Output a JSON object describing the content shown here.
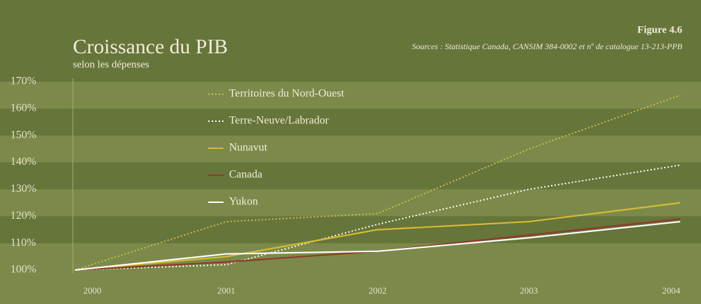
{
  "chart_data": {
    "type": "line",
    "title": "Croissance du PIB",
    "subtitle": "selon les dépenses",
    "figure_label": "Figure 4.6",
    "source": "Sources : Statistique Canada, CANSIM 384-0002 et nº de catalogue 13-213-PPB",
    "x": [
      2000,
      2001,
      2002,
      2003,
      2004
    ],
    "xlim": [
      2000,
      2004
    ],
    "xticks": [
      2000,
      2001,
      2002,
      2003,
      2004
    ],
    "ylim": [
      100,
      170
    ],
    "yticks": [
      {
        "value": 100,
        "label": "100%"
      },
      {
        "value": 110,
        "label": "110%"
      },
      {
        "value": 120,
        "label": "120%"
      },
      {
        "value": 130,
        "label": "130%"
      },
      {
        "value": 140,
        "label": "140%"
      },
      {
        "value": 150,
        "label": "150%"
      },
      {
        "value": 160,
        "label": "160%"
      },
      {
        "value": 170,
        "label": "170%"
      }
    ],
    "grid": true,
    "series": [
      {
        "name": "Territoires du Nord-Ouest",
        "color": "#cdbd4e",
        "style": "dotted",
        "values": [
          100,
          118,
          121,
          145,
          165
        ]
      },
      {
        "name": "Terre-Neuve/Labrador",
        "color": "#ffffff",
        "style": "dotted",
        "values": [
          100,
          102,
          117,
          130,
          139
        ]
      },
      {
        "name": "Nunavut",
        "color": "#d6bb34",
        "style": "solid",
        "values": [
          100,
          105,
          115,
          118,
          125
        ]
      },
      {
        "name": "Canada",
        "color": "#8e3b28",
        "style": "solid",
        "values": [
          100,
          103,
          107,
          113,
          119
        ]
      },
      {
        "name": "Yukon",
        "color": "#ffffff",
        "style": "solid",
        "values": [
          100,
          106,
          107,
          112,
          118
        ]
      }
    ]
  }
}
